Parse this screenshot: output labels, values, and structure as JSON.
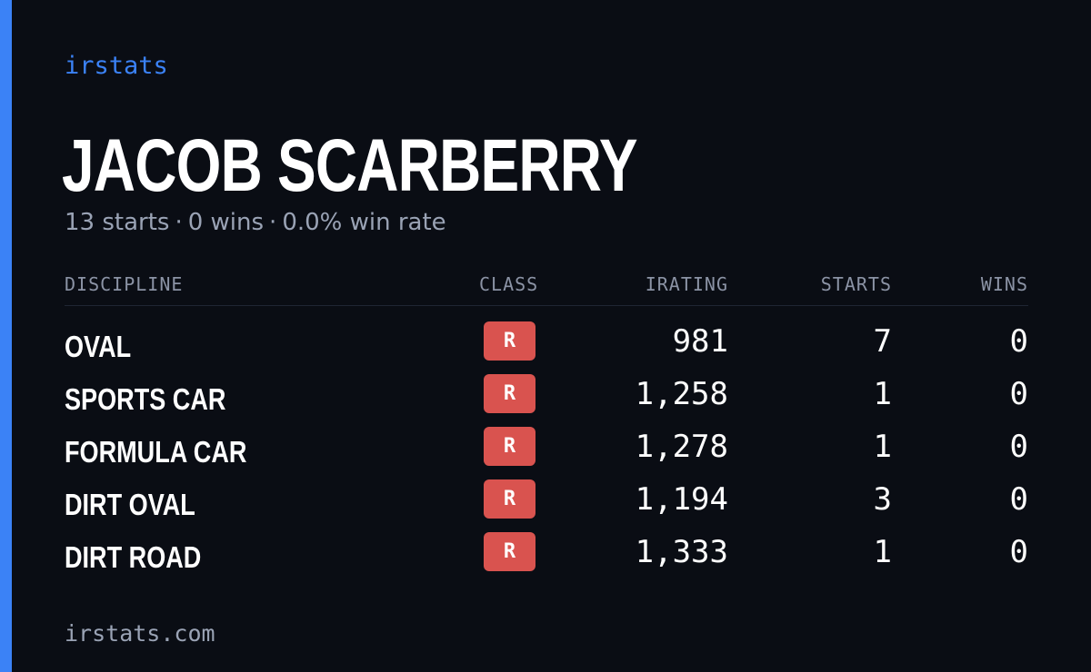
{
  "brand": "irstats",
  "player": {
    "name": "JACOB SCARBERRY",
    "starts": "13 starts",
    "wins": "0 wins",
    "win_rate": "0.0% win rate",
    "separator": "·"
  },
  "table": {
    "headers": {
      "discipline": "DISCIPLINE",
      "class": "CLASS",
      "irating": "IRATING",
      "starts": "STARTS",
      "wins": "WINS"
    },
    "rows": [
      {
        "discipline": "OVAL",
        "class": "R",
        "irating": "981",
        "starts": "7",
        "wins": "0"
      },
      {
        "discipline": "SPORTS CAR",
        "class": "R",
        "irating": "1,258",
        "starts": "1",
        "wins": "0"
      },
      {
        "discipline": "FORMULA CAR",
        "class": "R",
        "irating": "1,278",
        "starts": "1",
        "wins": "0"
      },
      {
        "discipline": "DIRT OVAL",
        "class": "R",
        "irating": "1,194",
        "starts": "3",
        "wins": "0"
      },
      {
        "discipline": "DIRT ROAD",
        "class": "R",
        "irating": "1,333",
        "starts": "1",
        "wins": "0"
      }
    ]
  },
  "footer": "irstats.com",
  "colors": {
    "accent": "#3b82f6",
    "class_badge": "#d9534f",
    "background": "#0a0d14"
  }
}
